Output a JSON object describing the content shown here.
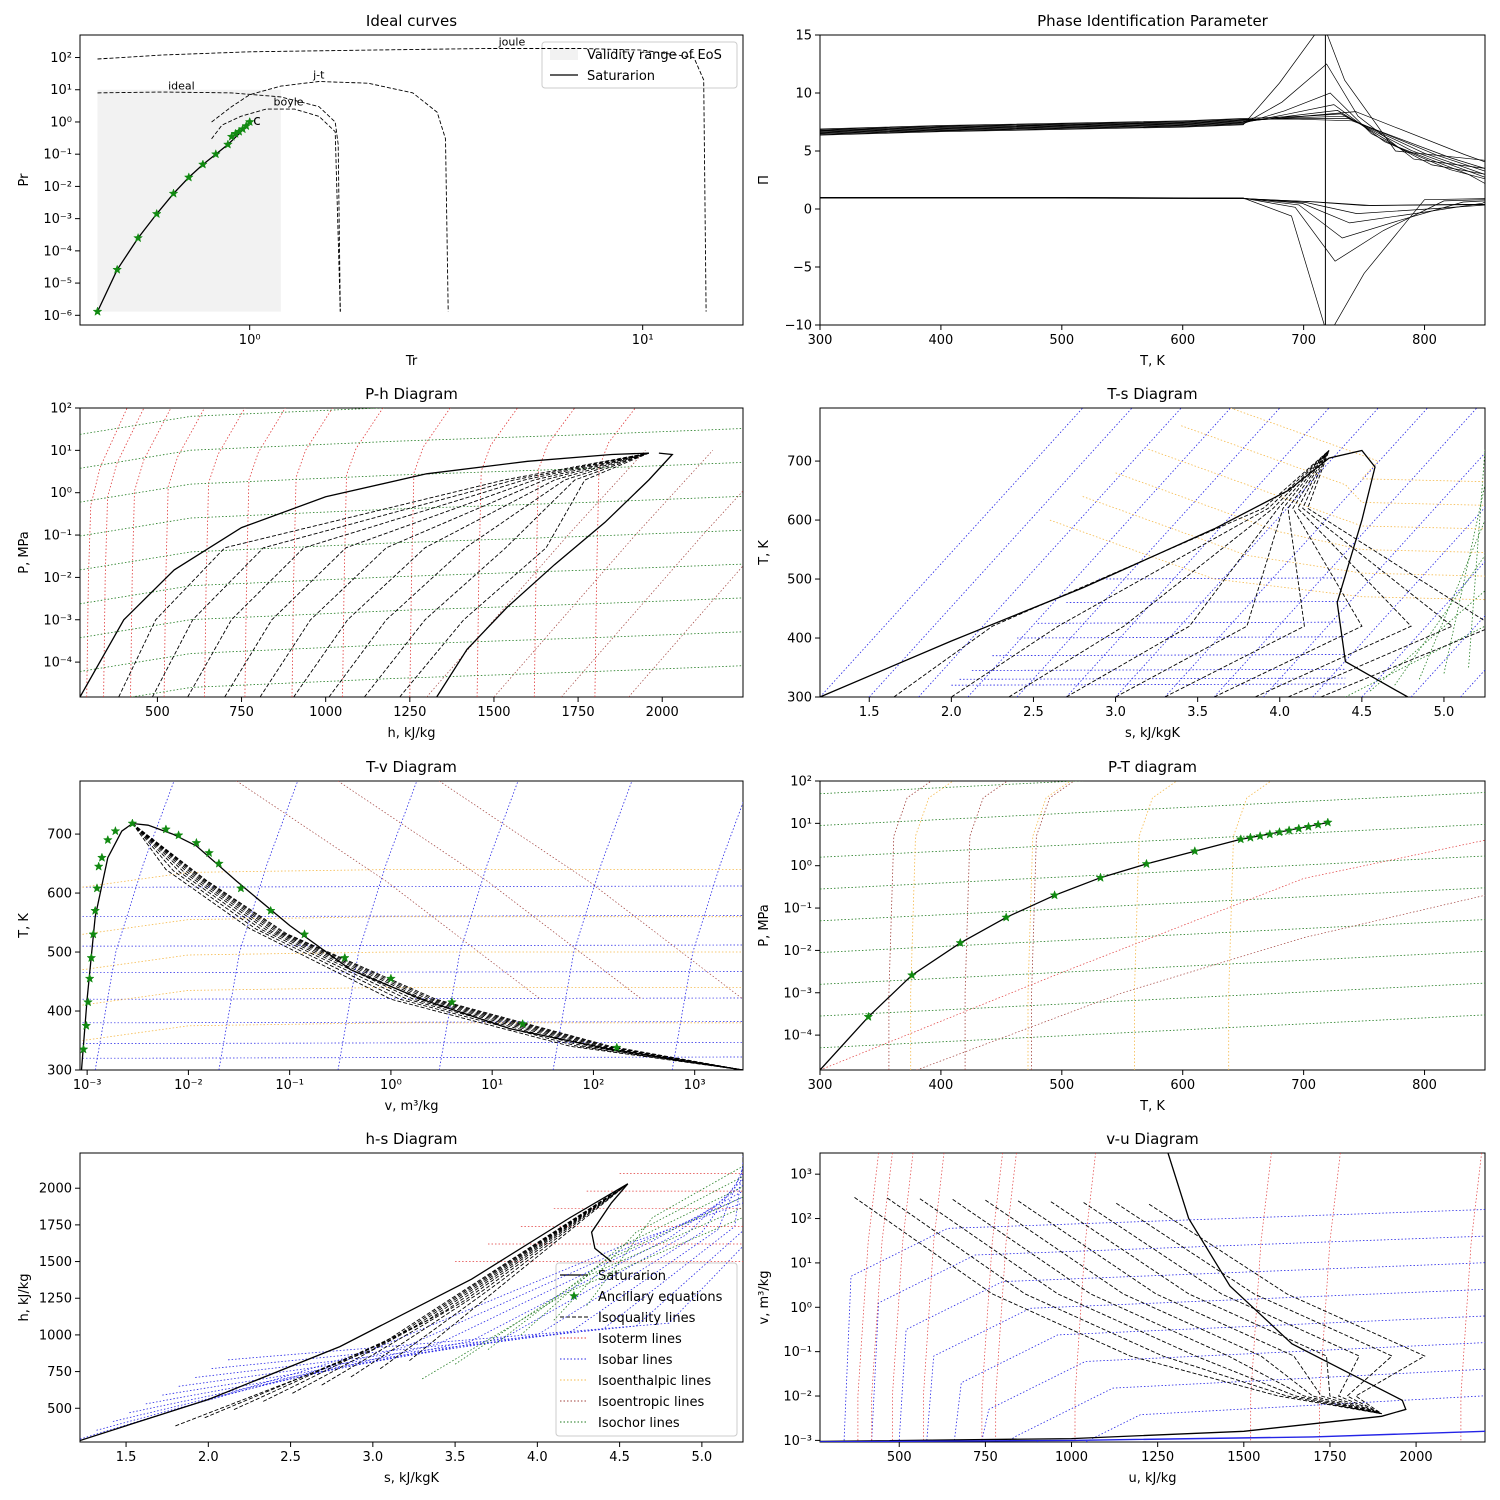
{
  "chart_data": [
    {
      "id": "ideal",
      "type": "line",
      "title": "Ideal curves",
      "xlabel": "Tr",
      "ylabel": "Pr",
      "xscale": "log",
      "yscale": "log",
      "xlim": [
        0.37,
        18
      ],
      "ylim": [
        5e-07,
        500
      ],
      "x_ticks": [
        {
          "v": 1,
          "label": "10⁰"
        },
        {
          "v": 10,
          "label": "10¹"
        }
      ],
      "y_ticks": [
        {
          "v": 1e-06,
          "label": "10⁻⁶"
        },
        {
          "v": 1e-05,
          "label": "10⁻⁵"
        },
        {
          "v": 0.0001,
          "label": "10⁻⁴"
        },
        {
          "v": 0.001,
          "label": "10⁻³"
        },
        {
          "v": 0.01,
          "label": "10⁻²"
        },
        {
          "v": 0.1,
          "label": "10⁻¹"
        },
        {
          "v": 1,
          "label": "10⁰"
        },
        {
          "v": 10,
          "label": "10¹"
        },
        {
          "v": 100,
          "label": "10²"
        }
      ],
      "legend": {
        "position": "top-right",
        "entries": [
          "Validity range of EoS",
          "Saturarion"
        ]
      },
      "annotations": [
        {
          "text": "joule",
          "x": 4.3,
          "y": 240
        },
        {
          "text": "ideal",
          "x": 0.62,
          "y": 10
        },
        {
          "text": "j-t",
          "x": 1.45,
          "y": 22
        },
        {
          "text": "boyle",
          "x": 1.15,
          "y": 3.2
        },
        {
          "text": "c",
          "x": 1.02,
          "y": 0.8
        }
      ],
      "validity_region": {
        "x": [
          0.41,
          1.2
        ],
        "y": [
          1.3e-06,
          10
        ]
      },
      "series": [
        {
          "name": "Saturarion",
          "x": [
            0.41,
            0.46,
            0.52,
            0.58,
            0.64,
            0.7,
            0.76,
            0.82,
            0.88,
            0.94,
            1.0
          ],
          "y": [
            1.3e-06,
            2.6e-05,
            0.00025,
            0.0014,
            0.006,
            0.019,
            0.048,
            0.1,
            0.2,
            0.43,
            1.0
          ]
        },
        {
          "name": "joule",
          "x": [
            0.41,
            0.6,
            1.0,
            2.0,
            4.0,
            7.0,
            10.0,
            13.5,
            14.3,
            14.5
          ],
          "y": [
            90,
            120,
            150,
            170,
            190,
            190,
            170,
            100,
            20,
            1.3e-06
          ]
        },
        {
          "name": "ideal",
          "x": [
            0.41,
            0.6,
            0.9,
            1.2,
            1.5,
            1.65,
            1.68,
            1.7
          ],
          "y": [
            8,
            8.5,
            8,
            6,
            3,
            1,
            0.2,
            1.3e-06
          ]
        },
        {
          "name": "j-t",
          "x": [
            0.8,
            0.9,
            1.0,
            1.2,
            1.5,
            2.0,
            2.6,
            3.0,
            3.15,
            3.2
          ],
          "y": [
            1,
            3,
            7,
            13,
            18,
            16,
            8,
            2,
            0.3,
            1.3e-06
          ]
        },
        {
          "name": "boyle",
          "x": [
            0.8,
            0.85,
            0.95,
            1.1,
            1.3,
            1.5,
            1.65,
            1.7
          ],
          "y": [
            0.3,
            0.8,
            1.5,
            2.5,
            2.5,
            1.5,
            0.5,
            1.3e-06
          ]
        }
      ],
      "markers": {
        "name": "Ancillary equations",
        "x": [
          0.41,
          0.46,
          0.52,
          0.58,
          0.64,
          0.7,
          0.76,
          0.82,
          0.88,
          0.9,
          0.92,
          0.94,
          0.96,
          0.98,
          1.0
        ],
        "y": [
          1.3e-06,
          2.6e-05,
          0.00025,
          0.0014,
          0.006,
          0.019,
          0.048,
          0.1,
          0.2,
          0.35,
          0.43,
          0.5,
          0.6,
          0.75,
          1.0
        ]
      }
    },
    {
      "id": "pip",
      "type": "line",
      "title": "Phase Identification Parameter",
      "xlabel": "T, K",
      "ylabel": "Π",
      "xlim": [
        300,
        850
      ],
      "ylim": [
        -10,
        15
      ],
      "x_ticks": [
        {
          "v": 300,
          "label": "300"
        },
        {
          "v": 400,
          "label": "400"
        },
        {
          "v": 500,
          "label": "500"
        },
        {
          "v": 600,
          "label": "600"
        },
        {
          "v": 700,
          "label": "700"
        },
        {
          "v": 800,
          "label": "800"
        }
      ],
      "y_ticks": [
        {
          "v": -10,
          "label": "−10"
        },
        {
          "v": -5,
          "label": "−5"
        },
        {
          "v": 0,
          "label": "0"
        },
        {
          "v": 5,
          "label": "5"
        },
        {
          "v": 10,
          "label": "10"
        },
        {
          "v": 15,
          "label": "15"
        }
      ],
      "critical_T": 718,
      "upper_base": [
        [
          300,
          6.6
        ],
        [
          400,
          6.9
        ],
        [
          500,
          7.1
        ],
        [
          600,
          7.3
        ],
        [
          650,
          7.5
        ]
      ],
      "lower_base": [
        [
          300,
          1.0
        ],
        [
          500,
          1.0
        ],
        [
          650,
          0.95
        ]
      ],
      "upper_tails": [
        4.2,
        3.5,
        3.0,
        2.6,
        2.2,
        1.9,
        1.6,
        1.4,
        1.2,
        1.0
      ],
      "lower_tails": [
        0.9,
        0.8,
        0.7,
        0.6,
        0.55,
        0.5,
        0.45
      ],
      "bump_heights": [
        18,
        12.5,
        10,
        9,
        8.5,
        8.2,
        8,
        7.8,
        7.6
      ],
      "dip_depths": [
        -12,
        -4.5,
        -2.5,
        -1.2,
        -0.4
      ]
    },
    {
      "id": "ph",
      "type": "line",
      "title": "P-h Diagram",
      "xlabel": "h, kJ/kg",
      "ylabel": "P, MPa",
      "yscale": "log",
      "xlim": [
        270,
        2240
      ],
      "ylim": [
        1.5e-05,
        100
      ],
      "x_ticks": [
        {
          "v": 500,
          "label": "500"
        },
        {
          "v": 750,
          "label": "750"
        },
        {
          "v": 1000,
          "label": "1000"
        },
        {
          "v": 1250,
          "label": "1250"
        },
        {
          "v": 1500,
          "label": "1500"
        },
        {
          "v": 1750,
          "label": "1750"
        },
        {
          "v": 2000,
          "label": "2000"
        }
      ],
      "y_ticks": [
        {
          "v": 0.0001,
          "label": "10⁻⁴"
        },
        {
          "v": 0.001,
          "label": "10⁻³"
        },
        {
          "v": 0.01,
          "label": "10⁻²"
        },
        {
          "v": 0.1,
          "label": "10⁻¹"
        },
        {
          "v": 1,
          "label": "10⁰"
        },
        {
          "v": 10,
          "label": "10¹"
        },
        {
          "v": 100,
          "label": "10²"
        }
      ],
      "saturation_liquid": {
        "x": [
          270,
          400,
          550,
          750,
          1000,
          1300,
          1600,
          1850,
          1960
        ],
        "y": [
          1.5e-05,
          0.001,
          0.015,
          0.15,
          0.8,
          2.8,
          5.5,
          8,
          8.6
        ]
      },
      "saturation_vapor": {
        "x": [
          1330,
          1420,
          1540,
          1680,
          1830,
          1960,
          2030,
          1990
        ],
        "y": [
          1.5e-05,
          0.0002,
          0.002,
          0.02,
          0.2,
          2,
          8,
          8.6
        ]
      },
      "quality_x_at_bottom": [
        385,
        485,
        590,
        700,
        805,
        905,
        1010,
        1115,
        1220
      ]
    },
    {
      "id": "ts",
      "type": "line",
      "title": "T-s Diagram",
      "xlabel": "s, kJ/kgK",
      "ylabel": "T, K",
      "xlim": [
        1.2,
        5.25
      ],
      "ylim": [
        300,
        790
      ],
      "x_ticks": [
        {
          "v": 1.5,
          "label": "1.5"
        },
        {
          "v": 2.0,
          "label": "2.0"
        },
        {
          "v": 2.5,
          "label": "2.5"
        },
        {
          "v": 3.0,
          "label": "3.0"
        },
        {
          "v": 3.5,
          "label": "3.5"
        },
        {
          "v": 4.0,
          "label": "4.0"
        },
        {
          "v": 4.5,
          "label": "4.5"
        },
        {
          "v": 5.0,
          "label": "5.0"
        }
      ],
      "y_ticks": [
        {
          "v": 300,
          "label": "300"
        },
        {
          "v": 400,
          "label": "400"
        },
        {
          "v": 500,
          "label": "500"
        },
        {
          "v": 600,
          "label": "600"
        },
        {
          "v": 700,
          "label": "700"
        }
      ],
      "saturation": {
        "x": [
          1.2,
          2.0,
          2.8,
          3.6,
          4.05,
          4.3,
          4.5,
          4.58,
          4.5,
          4.35,
          4.4,
          4.78
        ],
        "y": [
          300,
          395,
          485,
          585,
          650,
          705,
          718,
          690,
          600,
          460,
          360,
          300
        ]
      },
      "quality_s_at_bottom": [
        1.65,
        2.0,
        2.35,
        2.7,
        3.0,
        3.3,
        3.6,
        3.85,
        4.05,
        4.25
      ]
    },
    {
      "id": "tv",
      "type": "line",
      "title": "T-v Diagram",
      "xlabel": "v, m³/kg",
      "ylabel": "T, K",
      "xscale": "log",
      "xlim": [
        0.00085,
        3000
      ],
      "ylim": [
        300,
        790
      ],
      "x_ticks": [
        {
          "v": 0.001,
          "label": "10⁻³"
        },
        {
          "v": 0.01,
          "label": "10⁻²"
        },
        {
          "v": 0.1,
          "label": "10⁻¹"
        },
        {
          "v": 1,
          "label": "10⁰"
        },
        {
          "v": 10,
          "label": "10¹"
        },
        {
          "v": 100,
          "label": "10²"
        },
        {
          "v": 1000,
          "label": "10³"
        }
      ],
      "y_ticks": [
        {
          "v": 300,
          "label": "300"
        },
        {
          "v": 400,
          "label": "400"
        },
        {
          "v": 500,
          "label": "500"
        },
        {
          "v": 600,
          "label": "600"
        },
        {
          "v": 700,
          "label": "700"
        }
      ],
      "saturation": {
        "x": [
          0.00088,
          0.001,
          0.0012,
          0.0016,
          0.0022,
          0.0028,
          0.004,
          0.007,
          0.012,
          0.03,
          0.1,
          0.4,
          2,
          15,
          150,
          3000
        ],
        "y": [
          300,
          420,
          560,
          660,
          705,
          718,
          715,
          700,
          680,
          620,
          545,
          470,
          420,
          370,
          335,
          300
        ]
      },
      "markers": {
        "x": [
          0.00092,
          0.00098,
          0.00102,
          0.00106,
          0.0011,
          0.00115,
          0.0012,
          0.00125,
          0.0013,
          0.0014,
          0.0016,
          0.0019,
          0.0028,
          0.006,
          0.008,
          0.012,
          0.016,
          0.02,
          0.033,
          0.065,
          0.14,
          0.35,
          1.0,
          4,
          20,
          170
        ],
        "y": [
          335,
          375,
          415,
          455,
          490,
          530,
          570,
          608,
          645,
          660,
          690,
          705,
          718,
          708,
          698,
          685,
          668,
          650,
          608,
          570,
          530,
          490,
          455,
          415,
          378,
          338
        ]
      }
    },
    {
      "id": "pt",
      "type": "line",
      "title": "P-T diagram",
      "xlabel": "T, K",
      "ylabel": "P, MPa",
      "yscale": "log",
      "xlim": [
        300,
        850
      ],
      "ylim": [
        1.5e-05,
        100
      ],
      "x_ticks": [
        {
          "v": 300,
          "label": "300"
        },
        {
          "v": 400,
          "label": "400"
        },
        {
          "v": 500,
          "label": "500"
        },
        {
          "v": 600,
          "label": "600"
        },
        {
          "v": 700,
          "label": "700"
        },
        {
          "v": 800,
          "label": "800"
        }
      ],
      "y_ticks": [
        {
          "v": 0.0001,
          "label": "10⁻⁴"
        },
        {
          "v": 0.001,
          "label": "10⁻³"
        },
        {
          "v": 0.01,
          "label": "10⁻²"
        },
        {
          "v": 0.1,
          "label": "10⁻¹"
        },
        {
          "v": 1,
          "label": "10⁰"
        },
        {
          "v": 10,
          "label": "10¹"
        },
        {
          "v": 100,
          "label": "10²"
        }
      ],
      "saturation": {
        "x": [
          300,
          340,
          376,
          416,
          454,
          494,
          532,
          570,
          610,
          648,
          680,
          720
        ],
        "y": [
          1.5e-05,
          0.00027,
          0.0026,
          0.015,
          0.06,
          0.2,
          0.52,
          1.1,
          2.2,
          4.2,
          6.2,
          10.5
        ]
      },
      "markers": {
        "x": [
          340,
          376,
          416,
          454,
          494,
          532,
          570,
          610,
          648,
          656,
          664,
          672,
          680,
          688,
          696,
          704,
          712,
          720
        ],
        "y": [
          0.00027,
          0.0026,
          0.015,
          0.06,
          0.2,
          0.52,
          1.1,
          2.2,
          4.2,
          4.6,
          5.0,
          5.5,
          6.2,
          6.8,
          7.5,
          8.3,
          9.3,
          10.5
        ]
      }
    },
    {
      "id": "hs",
      "type": "line",
      "title": "h-s Diagram",
      "xlabel": "s, kJ/kgK",
      "ylabel": "h, kJ/kg",
      "xlim": [
        1.22,
        5.25
      ],
      "ylim": [
        270,
        2240
      ],
      "x_ticks": [
        {
          "v": 1.5,
          "label": "1.5"
        },
        {
          "v": 2.0,
          "label": "2.0"
        },
        {
          "v": 2.5,
          "label": "2.5"
        },
        {
          "v": 3.0,
          "label": "3.0"
        },
        {
          "v": 3.5,
          "label": "3.5"
        },
        {
          "v": 4.0,
          "label": "4.0"
        },
        {
          "v": 4.5,
          "label": "4.5"
        },
        {
          "v": 5.0,
          "label": "5.0"
        }
      ],
      "y_ticks": [
        {
          "v": 500,
          "label": "500"
        },
        {
          "v": 750,
          "label": "750"
        },
        {
          "v": 1000,
          "label": "1000"
        },
        {
          "v": 1250,
          "label": "1250"
        },
        {
          "v": 1500,
          "label": "1500"
        },
        {
          "v": 1750,
          "label": "1750"
        },
        {
          "v": 2000,
          "label": "2000"
        }
      ],
      "saturation": {
        "x": [
          1.22,
          2.0,
          2.8,
          3.6,
          4.2,
          4.55,
          4.45,
          4.33,
          4.35,
          4.45
        ],
        "y": [
          280,
          560,
          920,
          1380,
          1800,
          2030,
          1900,
          1700,
          1590,
          1500
        ]
      },
      "legend": {
        "position": "lower-right",
        "entries": [
          "Saturarion",
          "Ancillary equations",
          "Isoquality lines",
          "Isoterm lines",
          "Isobar lines",
          "Isoenthalpic lines",
          "Isoentropic lines",
          "Isochor lines"
        ]
      }
    },
    {
      "id": "vu",
      "type": "line",
      "title": "v-u Diagram",
      "xlabel": "u, kJ/kg",
      "ylabel": "v, m³/kg",
      "yscale": "log",
      "xlim": [
        270,
        2200
      ],
      "ylim": [
        0.00092,
        3000
      ],
      "x_ticks": [
        {
          "v": 500,
          "label": "500"
        },
        {
          "v": 750,
          "label": "750"
        },
        {
          "v": 1000,
          "label": "1000"
        },
        {
          "v": 1250,
          "label": "1250"
        },
        {
          "v": 1500,
          "label": "1500"
        },
        {
          "v": 1750,
          "label": "1750"
        },
        {
          "v": 2000,
          "label": "2000"
        }
      ],
      "y_ticks": [
        {
          "v": 0.001,
          "label": "10⁻³"
        },
        {
          "v": 0.01,
          "label": "10⁻²"
        },
        {
          "v": 0.1,
          "label": "10⁻¹"
        },
        {
          "v": 1,
          "label": "10⁰"
        },
        {
          "v": 10,
          "label": "10¹"
        },
        {
          "v": 100,
          "label": "10²"
        },
        {
          "v": 1000,
          "label": "10³"
        }
      ],
      "saturation": {
        "x": [
          1280,
          1340,
          1460,
          1640,
          1860,
          1960,
          1970,
          1900,
          1500,
          1000,
          270
        ],
        "y": [
          3000,
          100,
          3,
          0.15,
          0.02,
          0.008,
          0.005,
          0.0035,
          0.0016,
          0.0011,
          0.00095
        ]
      }
    }
  ]
}
